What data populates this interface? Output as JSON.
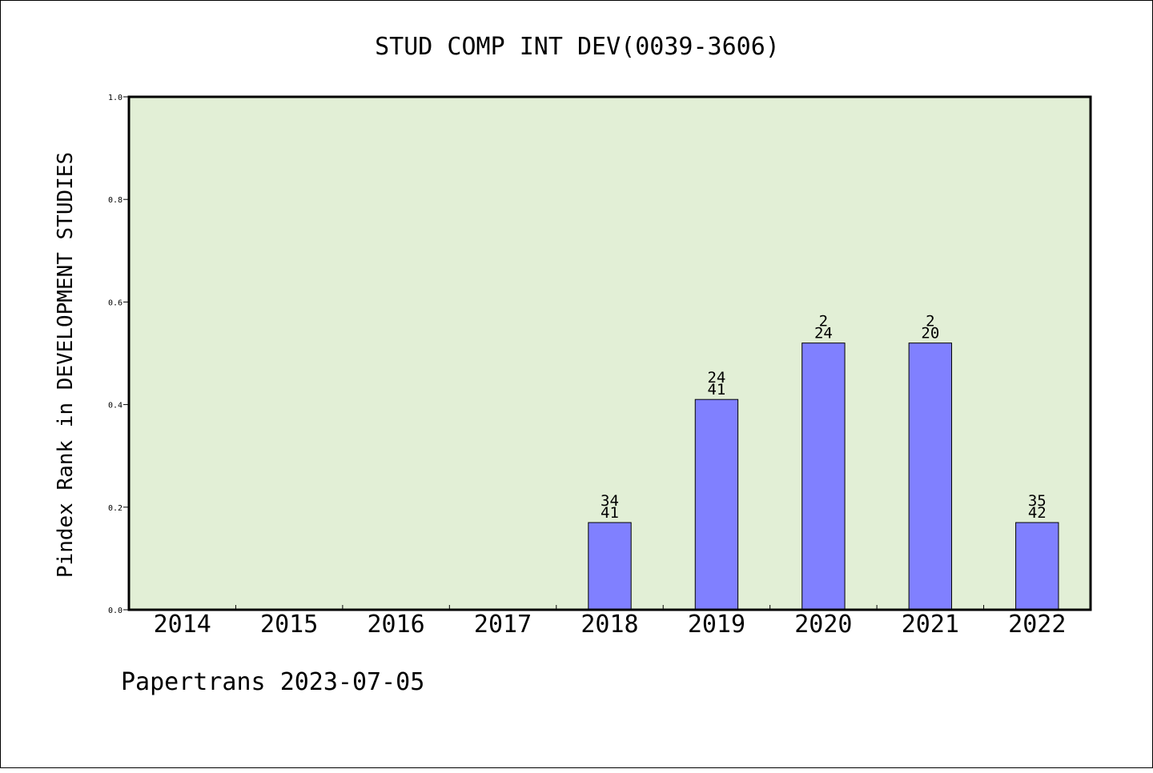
{
  "footer": {
    "source": "Papertrans",
    "date": "2023-07-05"
  },
  "chart_data": {
    "type": "bar",
    "title": "STUD COMP INT DEV(0039-3606)",
    "xlabel": "",
    "ylabel": "Pindex Rank in DEVELOPMENT STUDIES",
    "ylim": [
      0,
      1.0
    ],
    "yticks": [
      "0.0",
      "0.2",
      "0.4",
      "0.6",
      "0.8",
      "1.0"
    ],
    "categories": [
      "2014",
      "2015",
      "2016",
      "2017",
      "2018",
      "2019",
      "2020",
      "2021",
      "2022"
    ],
    "values": [
      null,
      null,
      null,
      null,
      0.17,
      0.41,
      0.52,
      0.52,
      0.17
    ],
    "label_top": [
      "",
      "",
      "",
      "",
      "34",
      "24",
      "2",
      "2",
      "35"
    ],
    "label_bottom": [
      "",
      "",
      "",
      "",
      "41",
      "41",
      "24",
      "20",
      "42"
    ],
    "colors": {
      "plot_background": "#e2efd6",
      "bar_fill": "#8080ff",
      "bar_stroke": "#000000"
    },
    "grid": false,
    "legend": "none"
  }
}
